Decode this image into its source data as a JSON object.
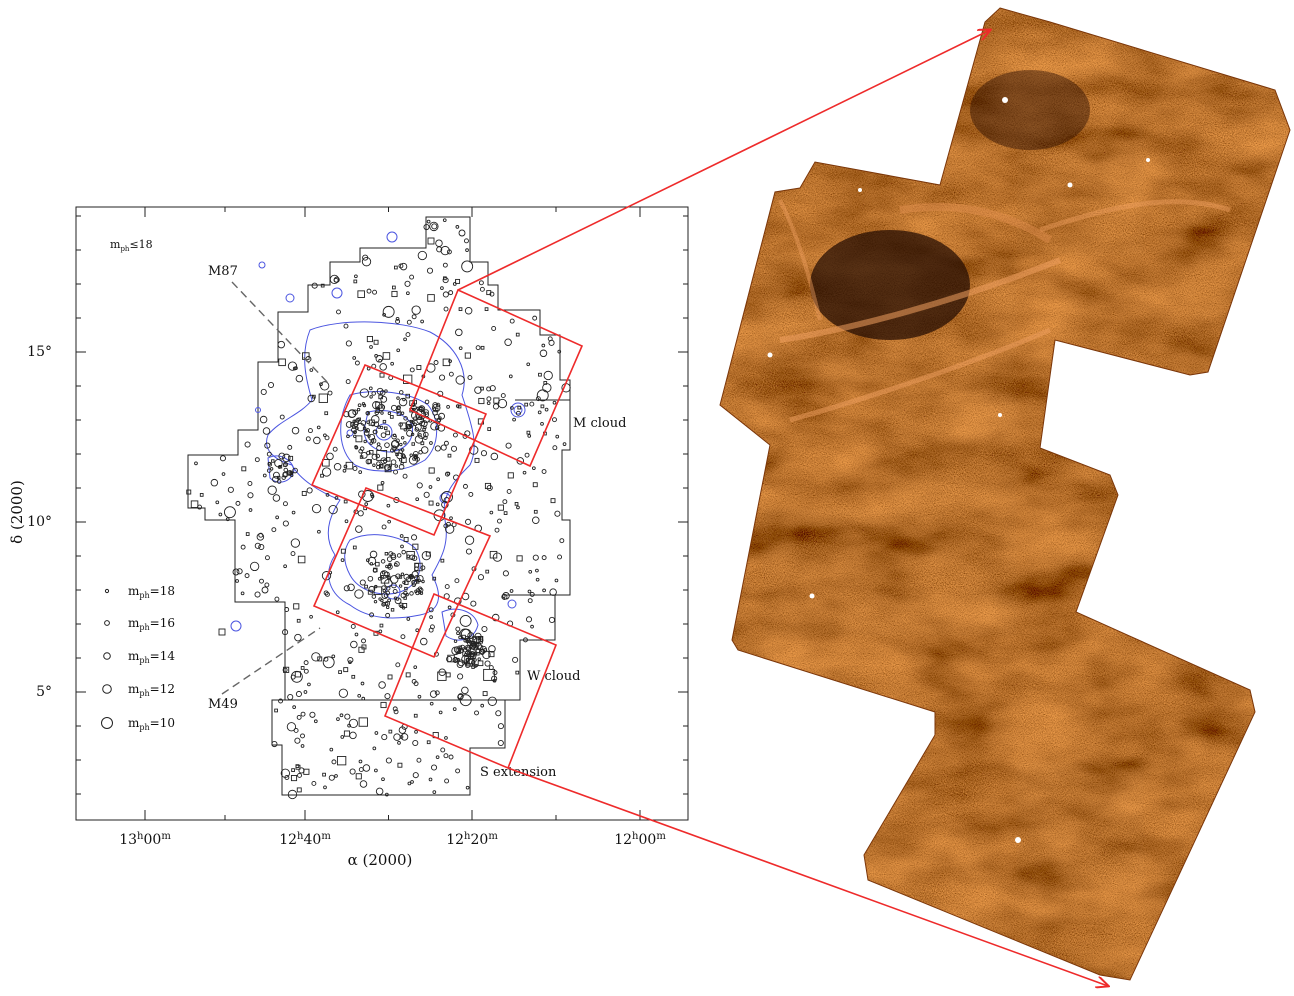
{
  "plot": {
    "x_axis_label": "α (2000)",
    "y_axis_label": "δ (2000)",
    "x_ticks": [
      {
        "label": "13h00m",
        "ra_hours": 13.0
      },
      {
        "label": "12h40m",
        "ra_hours": 12.6667
      },
      {
        "label": "12h20m",
        "ra_hours": 12.3333
      },
      {
        "label": "12h00m",
        "ra_hours": 12.0
      }
    ],
    "y_ticks": [
      {
        "label": "15°",
        "dec": 15
      },
      {
        "label": "10°",
        "dec": 10
      },
      {
        "label": "5°",
        "dec": 5
      }
    ],
    "selection_label": "m_ph≤18",
    "annotations": {
      "m87": "M87",
      "m49": "M49",
      "m_cloud": "M cloud",
      "w_cloud": "W cloud",
      "s_extension": "S extension"
    },
    "legend": [
      {
        "label": "m_ph=18",
        "sub": "ph",
        "mag": 18
      },
      {
        "label": "m_ph=16",
        "sub": "ph",
        "mag": 16
      },
      {
        "label": "m_ph=14",
        "sub": "ph",
        "mag": 14
      },
      {
        "label": "m_ph=12",
        "sub": "ph",
        "mag": 12
      },
      {
        "label": "m_ph=10",
        "sub": "ph",
        "mag": 10
      }
    ],
    "legend_text": {
      "prefix": "m",
      "sub": "ph",
      "values": [
        "=18",
        "=16",
        "=14",
        "=12",
        "=10"
      ]
    },
    "colors": {
      "frame": "#222222",
      "points": "#222222",
      "contours": "#4b55e0",
      "field_boxes": "#ee2b2b",
      "arrows": "#ee2b2b"
    }
  },
  "map_image": {
    "description_colors": {
      "base": "#8a3e0c",
      "dark": "#2a0d02",
      "bright": "#f0a060"
    }
  }
}
